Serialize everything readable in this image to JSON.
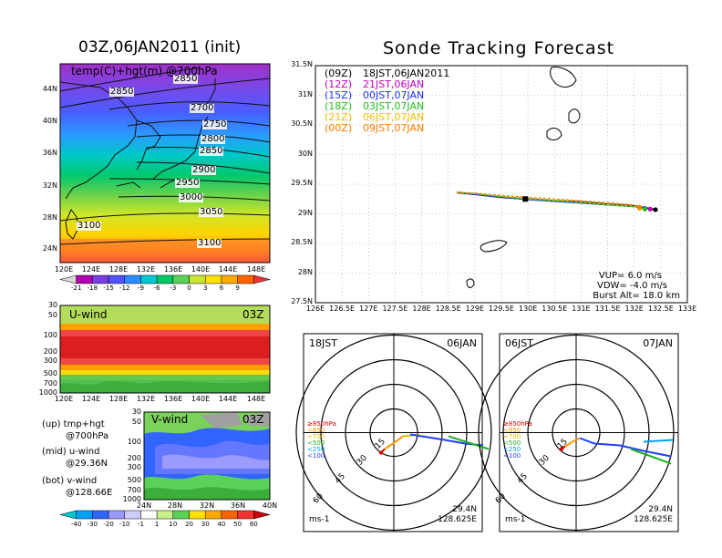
{
  "title_left": "03Z,06JAN2011 (init)",
  "title_right": "Sonde Tracking Forecast",
  "map_panel": {
    "label": "temp(C)+hgt(m) @700hPa",
    "lat_ticks": [
      "44N",
      "40N",
      "36N",
      "32N",
      "28N",
      "24N"
    ],
    "lon_ticks": [
      "120E",
      "124E",
      "128E",
      "132E",
      "136E",
      "140E",
      "144E",
      "148E"
    ],
    "contours": [
      "2850",
      "2850",
      "2700",
      "2750",
      "2800",
      "2850",
      "2900",
      "2950",
      "3000",
      "3050",
      "3100",
      "3100"
    ]
  },
  "temp_colorbar": {
    "labels": [
      "-21",
      "-18",
      "-15",
      "-12",
      "-9",
      "-6",
      "-3",
      "0",
      "3",
      "6",
      "9"
    ],
    "colors": [
      "#d9d9d9",
      "#b000b0",
      "#7a3de0",
      "#5050ff",
      "#2a8cff",
      "#00c8d2",
      "#00c864",
      "#5ad25a",
      "#c8e632",
      "#ffe100",
      "#ffaa00",
      "#ff6400",
      "#f03232"
    ]
  },
  "uwind_panel": {
    "label": "U-wind",
    "time": "03Z",
    "p_ticks": [
      "30",
      "50",
      "100",
      "200",
      "300",
      "500",
      "700",
      "1000"
    ],
    "lon_ticks": [
      "120E",
      "124E",
      "128E",
      "132E",
      "136E",
      "140E",
      "144E",
      "148E"
    ]
  },
  "vwind_panel": {
    "label": "V-wind",
    "time": "03Z",
    "p_ticks": [
      "30",
      "50",
      "100",
      "200",
      "300",
      "500",
      "700",
      "1000"
    ],
    "lat_ticks": [
      "24N",
      "28N",
      "32N",
      "36N",
      "40N"
    ]
  },
  "legend_notes": [
    {
      "a": "(up) tmp+hgt",
      "b": "@700hPa"
    },
    {
      "a": "(mid) u-wind",
      "b": "@29.36N"
    },
    {
      "a": "(bot) v-wind",
      "b": "@128.66E"
    }
  ],
  "wind_colorbar": {
    "labels": [
      "-40",
      "-30",
      "-20",
      "-10",
      "-1",
      "1",
      "10",
      "20",
      "30",
      "40",
      "50",
      "60"
    ],
    "colors": [
      "#00c8d2",
      "#00a0ff",
      "#3264ff",
      "#9a9aff",
      "#ccccff",
      "#ffffff",
      "#c8f08c",
      "#5ad25a",
      "#ffe100",
      "#ffaa00",
      "#ff6400",
      "#f03232",
      "#c80000"
    ]
  },
  "track_legend": [
    {
      "tag": "(09Z)",
      "text": "18JST,06JAN2011",
      "color": "#000000"
    },
    {
      "tag": "(12Z)",
      "text": "21JST,06JAN",
      "color": "#c000c0"
    },
    {
      "tag": "(15Z)",
      "text": "00JST,07JAN",
      "color": "#2030ff"
    },
    {
      "tag": "(18Z)",
      "text": "03JST,07JAN",
      "color": "#20c020"
    },
    {
      "tag": "(21Z)",
      "text": "06JST,07JAN",
      "color": "#f0c000"
    },
    {
      "tag": "(00Z)",
      "text": "09JST,07JAN",
      "color": "#ff7a00"
    }
  ],
  "track_axes": {
    "lat_ticks": [
      "31.5N",
      "31N",
      "30.5N",
      "30N",
      "29.5N",
      "29N",
      "28.5N",
      "28N",
      "27.5N"
    ],
    "lon_ticks": [
      "126E",
      "126.5E",
      "127E",
      "127.5E",
      "128E",
      "128.5E",
      "129E",
      "129.5E",
      "130E",
      "130.5E",
      "131E",
      "131.5E",
      "132E",
      "132.5E",
      "133E"
    ]
  },
  "params": {
    "vup": "VUP= 6.0 m/s",
    "vdw": "VDW= -4.0 m/s",
    "burst": "Burst Alt= 18.0 km"
  },
  "polar_left": {
    "time": "18JST",
    "date": "06JAN",
    "lat": "29.4N",
    "lon": "128.625E",
    "unit": "ms-1"
  },
  "polar_right": {
    "time": "06JST",
    "date": "07JAN",
    "lat": "29.4N",
    "lon": "128.625E",
    "unit": "ms-1"
  },
  "polar_rings": [
    "15",
    "30",
    "45",
    "60"
  ],
  "polar_levels": [
    {
      "label": "≥850hPa",
      "color": "#e00000"
    },
    {
      "label": "<850",
      "color": "#ff9900"
    },
    {
      "label": "<700",
      "color": "#e0c000"
    },
    {
      "label": "<500",
      "color": "#20b020"
    },
    {
      "label": "<250",
      "color": "#00a0ff"
    },
    {
      "label": "<100",
      "color": "#2040ff"
    }
  ],
  "chart_data": {
    "type": "line",
    "title": "Sonde Tracking Forecast",
    "xlim": [
      126,
      133
    ],
    "ylim": [
      27.5,
      31.5
    ],
    "launch_point": [
      129.95,
      29.25
    ],
    "series": [
      {
        "name": "(09Z) 18JST,06JAN2011",
        "color": "#000000",
        "x": [
          128.66,
          129.0,
          129.5,
          130.0,
          130.5,
          131.0,
          131.5,
          132.0,
          132.4
        ],
        "y": [
          29.36,
          29.33,
          29.28,
          29.25,
          29.22,
          29.2,
          29.16,
          29.13,
          29.07
        ]
      },
      {
        "name": "(12Z) 21JST,06JAN",
        "color": "#c000c0",
        "x": [
          128.66,
          129.0,
          129.5,
          130.0,
          130.5,
          131.0,
          131.5,
          132.0,
          132.3
        ],
        "y": [
          29.36,
          29.33,
          29.28,
          29.24,
          29.21,
          29.18,
          29.15,
          29.12,
          29.08
        ]
      },
      {
        "name": "(15Z) 00JST,07JAN",
        "color": "#2030ff",
        "x": [
          128.66,
          129.0,
          129.5,
          130.0,
          130.5,
          131.0,
          131.5,
          132.0,
          132.2
        ],
        "y": [
          29.36,
          29.33,
          29.28,
          29.24,
          29.21,
          29.18,
          29.15,
          29.12,
          29.09
        ]
      },
      {
        "name": "(18Z) 03JST,07JAN",
        "color": "#20c020",
        "x": [
          128.66,
          129.0,
          129.5,
          130.0,
          130.5,
          131.0,
          131.5,
          132.0,
          132.2
        ],
        "y": [
          29.36,
          29.34,
          29.29,
          29.25,
          29.22,
          29.19,
          29.15,
          29.12,
          29.08
        ]
      },
      {
        "name": "(21Z) 06JST,07JAN",
        "color": "#f0c000",
        "x": [
          128.66,
          129.0,
          129.5,
          130.0,
          130.5,
          131.0,
          131.5,
          132.0,
          132.1
        ],
        "y": [
          29.36,
          29.34,
          29.3,
          29.26,
          29.23,
          29.2,
          29.16,
          29.13,
          29.09
        ]
      },
      {
        "name": "(00Z) 09JST,07JAN",
        "color": "#ff7a00",
        "x": [
          128.66,
          129.0,
          129.5,
          130.0,
          130.5,
          131.0,
          131.5,
          132.0,
          132.1
        ],
        "y": [
          29.36,
          29.35,
          29.31,
          29.28,
          29.25,
          29.22,
          29.19,
          29.15,
          29.11
        ]
      }
    ]
  }
}
